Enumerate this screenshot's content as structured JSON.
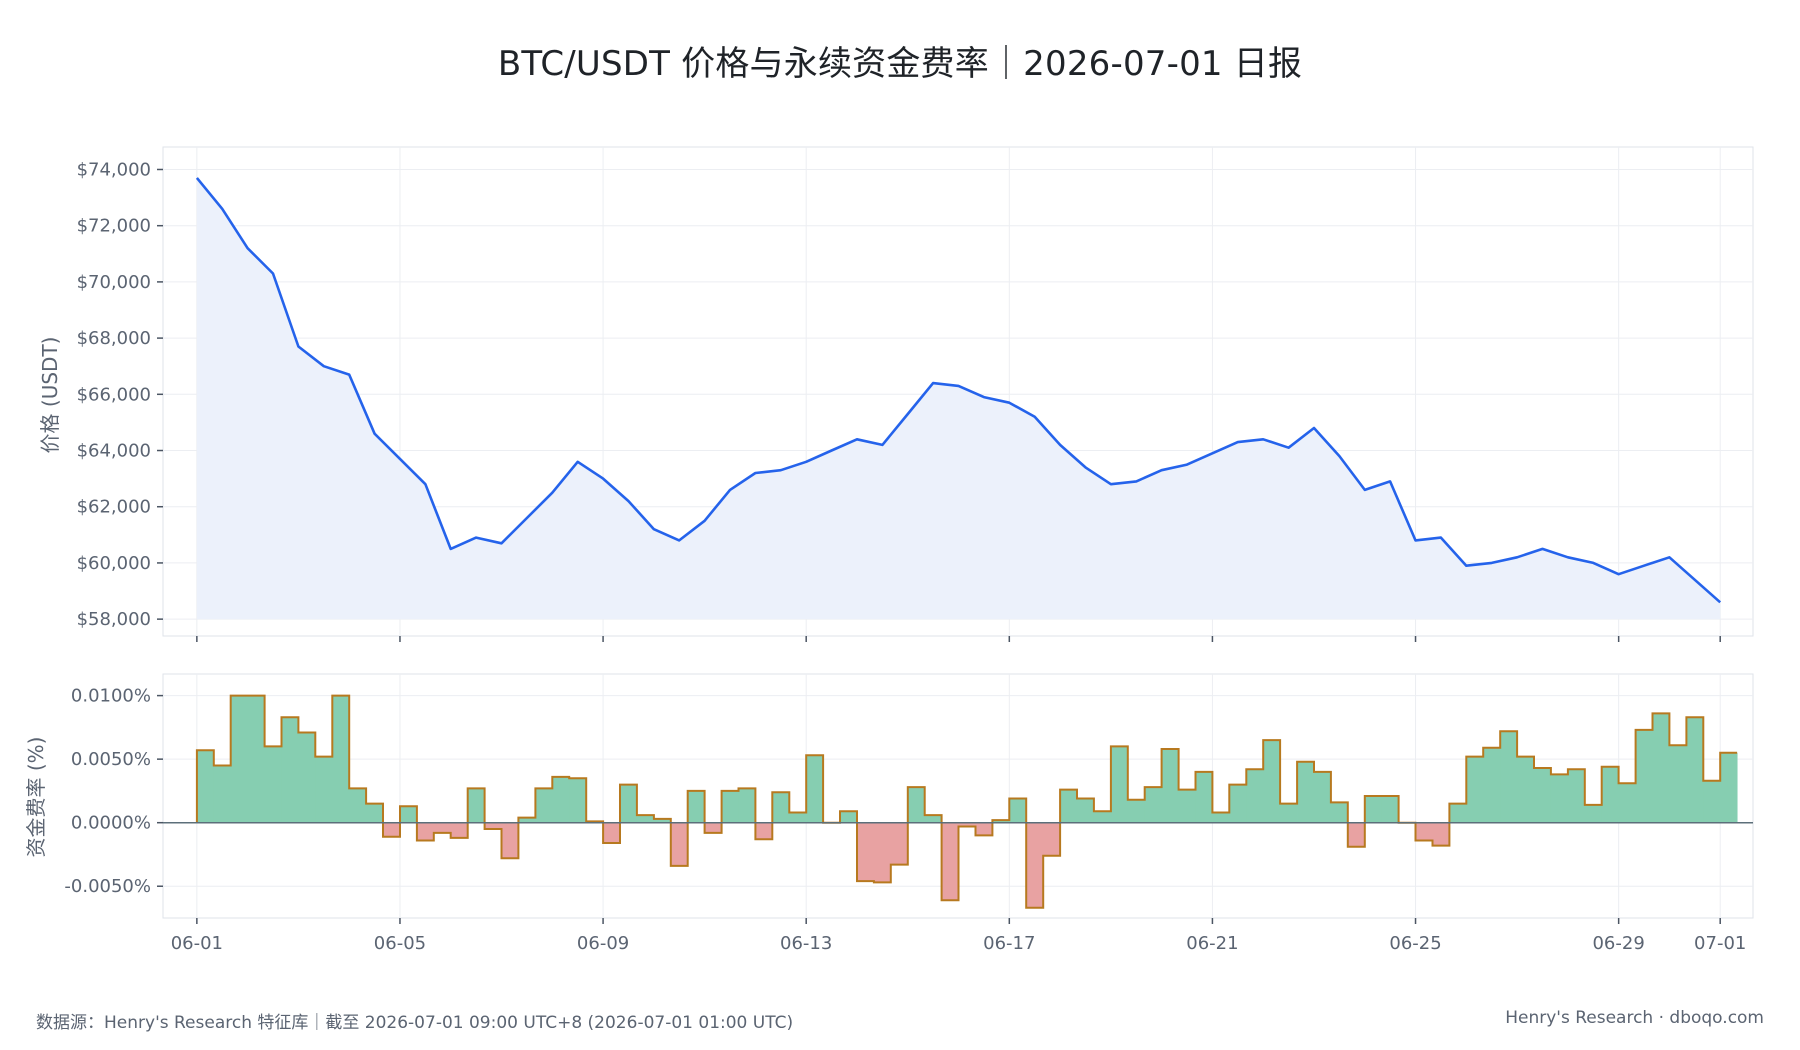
{
  "title": "BTC/USDT 价格与永续资金费率｜2026-07-01 日报",
  "footer": {
    "source": "数据源：Henry's Research 特征库｜截至 2026-07-01 09:00 UTC+8 (2026-07-01 01:00 UTC)",
    "brand": "Henry's Research · dboqo.com"
  },
  "colors": {
    "price_line": "#2563eb",
    "price_fill": "#ecf1fb",
    "funding_positive": "#86ceb1",
    "funding_negative": "#e8a2a2",
    "funding_stroke": "#b7791f",
    "grid": "#eceef2",
    "zero_line": "#5c6f7a"
  },
  "chart_data": [
    {
      "type": "line",
      "panel": "price",
      "ylabel": "价格 (USDT)",
      "ylim": [
        57400,
        74800
      ],
      "yticks": [
        58000,
        60000,
        62000,
        64000,
        66000,
        68000,
        70000,
        72000,
        74000
      ],
      "ytick_labels": [
        "$58,000",
        "$60,000",
        "$62,000",
        "$64,000",
        "$66,000",
        "$68,000",
        "$70,000",
        "$72,000",
        "$74,000"
      ],
      "area_fill": true,
      "series": [
        {
          "x": [
            "06-01 00:00",
            "06-01 12:00",
            "06-02 00:00",
            "06-02 12:00",
            "06-03 00:00",
            "06-03 12:00",
            "06-04 00:00",
            "06-04 12:00",
            "06-05 00:00",
            "06-05 12:00",
            "06-06 00:00",
            "06-06 12:00",
            "06-07 00:00",
            "06-07 12:00",
            "06-08 00:00",
            "06-08 12:00",
            "06-09 00:00",
            "06-09 12:00",
            "06-10 00:00",
            "06-10 12:00",
            "06-11 00:00",
            "06-11 12:00",
            "06-12 00:00",
            "06-12 12:00",
            "06-13 00:00",
            "06-13 12:00",
            "06-14 00:00",
            "06-14 12:00",
            "06-15 00:00",
            "06-15 12:00",
            "06-16 00:00",
            "06-16 12:00",
            "06-17 00:00",
            "06-17 12:00",
            "06-18 00:00",
            "06-18 12:00",
            "06-19 00:00",
            "06-19 12:00",
            "06-20 00:00",
            "06-20 12:00",
            "06-21 00:00",
            "06-21 12:00",
            "06-22 00:00",
            "06-22 12:00",
            "06-23 00:00",
            "06-23 12:00",
            "06-24 00:00",
            "06-24 12:00",
            "06-25 00:00",
            "06-25 12:00",
            "06-26 00:00",
            "06-26 12:00",
            "06-27 00:00",
            "06-27 12:00",
            "06-28 00:00",
            "06-28 12:00",
            "06-29 00:00",
            "06-29 12:00",
            "06-30 00:00",
            "06-30 12:00",
            "07-01 00:00"
          ],
          "y": [
            73700,
            72600,
            71200,
            70300,
            67700,
            67000,
            66700,
            64600,
            63700,
            62800,
            60500,
            60900,
            60700,
            61600,
            62500,
            63600,
            63000,
            62200,
            61200,
            60800,
            61500,
            62600,
            63200,
            63300,
            63600,
            64000,
            64400,
            64200,
            65300,
            66400,
            66300,
            65900,
            65700,
            65200,
            64200,
            63400,
            62800,
            62900,
            63300,
            63500,
            63900,
            64300,
            64400,
            64100,
            64800,
            63800,
            62600,
            62900,
            60800,
            60900,
            59900,
            60000,
            60200,
            60500,
            60200,
            60000,
            59600,
            59900,
            60200,
            59400,
            58600
          ]
        }
      ]
    },
    {
      "type": "bar",
      "panel": "funding",
      "ylabel": "资金费率 (%)",
      "ylim": [
        -0.0075,
        0.0117
      ],
      "yticks": [
        -0.005,
        0.0,
        0.005,
        0.01
      ],
      "ytick_labels": [
        "-0.0050%",
        "0.0000%",
        "0.0050%",
        "0.0100%"
      ],
      "step": true,
      "interval_hours": 8,
      "x_start": "06-01 00:00",
      "values": [
        0.0057,
        0.0045,
        0.01,
        0.01,
        0.006,
        0.0083,
        0.0071,
        0.0052,
        0.01,
        0.0027,
        0.0015,
        -0.0011,
        0.0013,
        -0.0014,
        -0.0008,
        -0.0012,
        0.0027,
        -0.0005,
        -0.0028,
        0.0004,
        0.0027,
        0.0036,
        0.0035,
        0.0001,
        -0.0016,
        0.003,
        0.0006,
        0.0003,
        -0.0034,
        0.0025,
        -0.0008,
        0.0025,
        0.0027,
        -0.0013,
        0.0024,
        0.0008,
        0.0053,
        0.0,
        0.0009,
        -0.0046,
        -0.0047,
        -0.0033,
        0.0028,
        0.0006,
        -0.0061,
        -0.0003,
        -0.001,
        0.0002,
        0.0019,
        -0.0067,
        -0.0026,
        0.0026,
        0.0019,
        0.0009,
        0.006,
        0.0018,
        0.0028,
        0.0058,
        0.0026,
        0.004,
        0.0008,
        0.003,
        0.0042,
        0.0065,
        0.0015,
        0.0048,
        0.004,
        0.0016,
        -0.0019,
        0.0021,
        0.0021,
        0.0,
        -0.0014,
        -0.0018,
        0.0015,
        0.0052,
        0.0059,
        0.0072,
        0.0052,
        0.0043,
        0.0038,
        0.0042,
        0.0014,
        0.0044,
        0.0031,
        0.0073,
        0.0086,
        0.0061,
        0.0083,
        0.0033,
        0.0055
      ]
    }
  ],
  "x_axis": {
    "range": [
      "05-31 08:00",
      "07-01 15:30"
    ],
    "ticks": [
      "06-01",
      "06-05",
      "06-09",
      "06-13",
      "06-17",
      "06-21",
      "06-25",
      "06-29",
      "07-01"
    ]
  }
}
